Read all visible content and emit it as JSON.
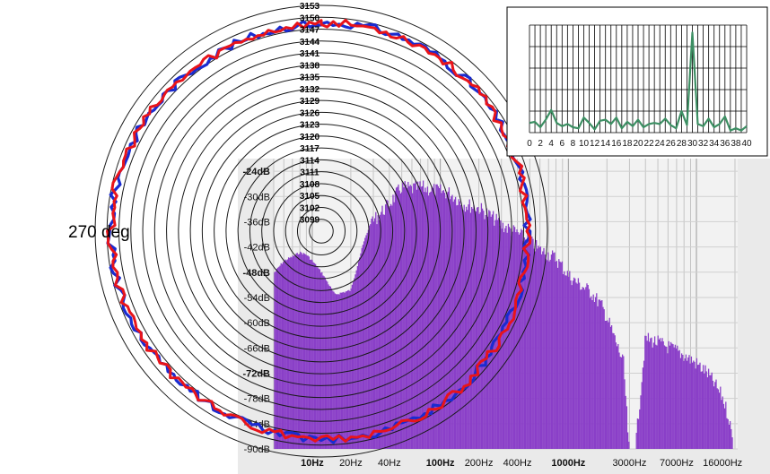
{
  "chart_data": [
    {
      "type": "area",
      "title": "",
      "xlabel": "",
      "ylabel": "",
      "x_scale": "log",
      "xlim": [
        5,
        21000
      ],
      "ylim": [
        -90,
        -21
      ],
      "x_ticks": [
        "10Hz",
        "20Hz",
        "40Hz",
        "100Hz",
        "200Hz",
        "400Hz",
        "1000Hz",
        "3000Hz",
        "7000Hz",
        "16000Hz"
      ],
      "x_ticks_bold": [
        "10Hz",
        "100Hz",
        "1000Hz"
      ],
      "y_ticks": [
        "-24dB",
        "-30dB",
        "-36dB",
        "-42dB",
        "-48dB",
        "-54dB",
        "-60dB",
        "-66dB",
        "-72dB",
        "-78dB",
        "-84dB",
        "-90dB"
      ],
      "y_ticks_bold": [
        "-24dB",
        "-48dB",
        "-72dB"
      ],
      "grid": true,
      "colors": {
        "fill": "#8a3fc8",
        "background": "#eaeaea",
        "grid": "#ffffff"
      },
      "series": [
        {
          "x": [
            5,
            6,
            7,
            8,
            9,
            10,
            12,
            15,
            20,
            25,
            30,
            40,
            50,
            60,
            70,
            80,
            100,
            120,
            150,
            200,
            250,
            300,
            400,
            500,
            600,
            700,
            800,
            900,
            1000,
            1200,
            1500,
            1800,
            2000,
            2300,
            2700,
            3000,
            3300,
            4000,
            5000,
            6000,
            7000,
            8000,
            9000,
            10000,
            12000,
            14000,
            16000,
            18000,
            20000
          ],
          "values": [
            -48,
            -45,
            -44,
            -43,
            -43.5,
            -45,
            -48,
            -53,
            -52,
            -41,
            -34,
            -30,
            -26,
            -26.5,
            -26,
            -26.5,
            -27,
            -27.5,
            -30,
            -31,
            -33,
            -35,
            -37,
            -39,
            -41,
            -42,
            -43,
            -45,
            -47,
            -49,
            -51,
            -54,
            -57,
            -62,
            -68,
            -90,
            -90,
            -62,
            -63,
            -64,
            -65,
            -66,
            -67,
            -68,
            -70,
            -73,
            -76,
            -81,
            -90
          ]
        }
      ]
    },
    {
      "type": "line",
      "title": "",
      "subtype": "polar",
      "angle_label": "270 deg",
      "r_ticks": [
        "3099",
        "3102",
        "3105",
        "3108",
        "3111",
        "3114",
        "3117",
        "3120",
        "3123",
        "3126",
        "3129",
        "3132",
        "3135",
        "3138",
        "3141",
        "3144",
        "3147",
        "3150",
        "3153"
      ],
      "rlim": [
        3096,
        3153
      ],
      "series": [
        {
          "color": "#1a2bd0",
          "mean_radius": 3148.5,
          "jitter": 1.0
        },
        {
          "color": "#e8141a",
          "mean_radius": 3148.5,
          "jitter": 1.0
        }
      ]
    },
    {
      "type": "line",
      "title": "",
      "x_ticks": [
        "0",
        "2",
        "4",
        "6",
        "8",
        "10",
        "12",
        "14",
        "16",
        "18",
        "20",
        "22",
        "24",
        "26",
        "28",
        "30",
        "32",
        "34",
        "36",
        "38",
        "40"
      ],
      "xlim": [
        0,
        40
      ],
      "ylim": [
        0,
        10
      ],
      "grid": true,
      "colors": {
        "line": "#3c8f63"
      },
      "series": [
        {
          "x": [
            0,
            1,
            2,
            3,
            4,
            5,
            6,
            7,
            8,
            9,
            10,
            11,
            12,
            13,
            14,
            15,
            16,
            17,
            18,
            19,
            20,
            21,
            22,
            23,
            24,
            25,
            26,
            27,
            28,
            29,
            30,
            31,
            32,
            33,
            34,
            35,
            36,
            37,
            38,
            39,
            40
          ],
          "values": [
            0.9,
            1.0,
            0.5,
            1.2,
            2.1,
            0.9,
            0.6,
            0.8,
            0.5,
            0.4,
            1.4,
            0.9,
            0.3,
            1.1,
            1.2,
            0.8,
            1.4,
            0.4,
            1.0,
            0.6,
            1.2,
            0.5,
            0.8,
            0.9,
            0.8,
            1.3,
            0.7,
            0.4,
            2.0,
            0.7,
            9.3,
            0.8,
            0.6,
            1.3,
            0.5,
            0.8,
            1.5,
            0.2,
            0.4,
            0.2,
            0.6
          ]
        }
      ]
    }
  ]
}
